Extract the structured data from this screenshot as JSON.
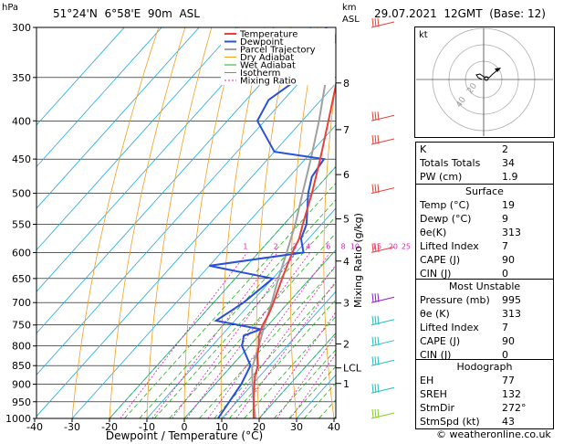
{
  "header": {
    "location": "51°24'N  6°58'E  90m  ASL",
    "datetime": "29.07.2021  12GMT  (Base: 12)",
    "hpa_label": "hPa",
    "km_label": "km",
    "asl_label": "ASL"
  },
  "chart_data": {
    "type": "skew-t",
    "xlabel": "Dewpoint / Temperature (°C)",
    "ylabel_right": "Mixing Ratio (g/kg)",
    "pressure_ticks": [
      "300",
      "350",
      "400",
      "450",
      "500",
      "550",
      "600",
      "650",
      "700",
      "750",
      "800",
      "850",
      "900",
      "950",
      "1000"
    ],
    "temp_ticks": [
      "-40",
      "-30",
      "-20",
      "-10",
      "0",
      "10",
      "20",
      "30",
      "40"
    ],
    "km_ticks": [
      {
        "label": "8",
        "p": 356
      },
      {
        "label": "7",
        "p": 411
      },
      {
        "label": "6",
        "p": 472
      },
      {
        "label": "5",
        "p": 541
      },
      {
        "label": "4",
        "p": 616
      },
      {
        "label": "3",
        "p": 701
      },
      {
        "label": "2",
        "p": 795
      },
      {
        "label": "LCL",
        "p": 856
      },
      {
        "label": "1",
        "p": 898
      }
    ],
    "mixing_ratio_labels": [
      "1",
      "2",
      "3",
      "4",
      "6",
      "8",
      "10",
      "15",
      "20",
      "25"
    ],
    "legend": [
      "Temperature",
      "Dewpoint",
      "Parcel Trajectory",
      "Dry Adiabat",
      "Wet Adiabat",
      "Isotherm",
      "Mixing Ratio"
    ],
    "colors": {
      "temperature": "#e8413a",
      "dewpoint": "#2850d8",
      "parcel": "#a0a0a0",
      "dry_adiabat": "#f0a020",
      "wet_adiabat": "#20b020",
      "isotherm": "#20a8e0",
      "mixing_ratio": "#e020c0"
    },
    "temperature": [
      {
        "p": 1000,
        "t": 18.5
      },
      {
        "p": 975,
        "t": 16.5
      },
      {
        "p": 950,
        "t": 14.5
      },
      {
        "p": 925,
        "t": 12.5
      },
      {
        "p": 900,
        "t": 10.5
      },
      {
        "p": 875,
        "t": 8.5
      },
      {
        "p": 850,
        "t": 7
      },
      {
        "p": 825,
        "t": 4.5
      },
      {
        "p": 800,
        "t": 2.5
      },
      {
        "p": 775,
        "t": 0
      },
      {
        "p": 750,
        "t": -1.5
      },
      {
        "p": 725,
        "t": -2.5
      },
      {
        "p": 700,
        "t": -4
      },
      {
        "p": 650,
        "t": -7.5
      },
      {
        "p": 600,
        "t": -11
      },
      {
        "p": 575,
        "t": -12.5
      },
      {
        "p": 550,
        "t": -15
      },
      {
        "p": 500,
        "t": -20
      },
      {
        "p": 450,
        "t": -26
      },
      {
        "p": 400,
        "t": -33
      },
      {
        "p": 350,
        "t": -41
      },
      {
        "p": 300,
        "t": -50
      }
    ],
    "dewpoint": [
      {
        "p": 1000,
        "t": 9
      },
      {
        "p": 950,
        "t": 8
      },
      {
        "p": 900,
        "t": 7
      },
      {
        "p": 850,
        "t": 5
      },
      {
        "p": 800,
        "t": -2
      },
      {
        "p": 775,
        "t": -4
      },
      {
        "p": 760,
        "t": -1
      },
      {
        "p": 740,
        "t": -15
      },
      {
        "p": 700,
        "t": -12
      },
      {
        "p": 650,
        "t": -10
      },
      {
        "p": 625,
        "t": -30
      },
      {
        "p": 600,
        "t": -8
      },
      {
        "p": 575,
        "t": -12
      },
      {
        "p": 550,
        "t": -14
      },
      {
        "p": 500,
        "t": -21
      },
      {
        "p": 475,
        "t": -24
      },
      {
        "p": 450,
        "t": -25
      },
      {
        "p": 440,
        "t": -40
      },
      {
        "p": 400,
        "t": -52
      },
      {
        "p": 375,
        "t": -54
      },
      {
        "p": 350,
        "t": -51
      },
      {
        "p": 340,
        "t": -60
      },
      {
        "p": 325,
        "t": -50
      },
      {
        "p": 310,
        "t": -54
      },
      {
        "p": 300,
        "t": -56
      }
    ],
    "parcel": [
      {
        "p": 1000,
        "t": 19
      },
      {
        "p": 950,
        "t": 14.5
      },
      {
        "p": 900,
        "t": 10
      },
      {
        "p": 856,
        "t": 6
      },
      {
        "p": 800,
        "t": 2.5
      },
      {
        "p": 750,
        "t": -1
      },
      {
        "p": 700,
        "t": -4.5
      },
      {
        "p": 650,
        "t": -8.5
      },
      {
        "p": 600,
        "t": -12.5
      },
      {
        "p": 550,
        "t": -17
      },
      {
        "p": 500,
        "t": -22.5
      },
      {
        "p": 450,
        "t": -28.5
      },
      {
        "p": 400,
        "t": -35.5
      },
      {
        "p": 350,
        "t": -44
      },
      {
        "p": 300,
        "t": -53
      }
    ],
    "wind_barbs": [
      {
        "p": 300,
        "color": "#e8413a"
      },
      {
        "p": 400,
        "color": "#e8413a"
      },
      {
        "p": 430,
        "color": "#e8413a"
      },
      {
        "p": 500,
        "color": "#e8413a"
      },
      {
        "p": 600,
        "color": "#e8413a"
      },
      {
        "p": 700,
        "color": "#8a20d0"
      },
      {
        "p": 750,
        "color": "#20c0c0"
      },
      {
        "p": 800,
        "color": "#20c0c0"
      },
      {
        "p": 850,
        "color": "#20c0c0"
      },
      {
        "p": 925,
        "color": "#20c0c0"
      },
      {
        "p": 1000,
        "color": "#80d020"
      }
    ]
  },
  "hodograph": {
    "unit_label": "kt",
    "ring_labels": [
      "20",
      "40"
    ]
  },
  "indices": {
    "k_label": "K",
    "k_value": "2",
    "tt_label": "Totals Totals",
    "tt_value": "34",
    "pw_label": "PW (cm)",
    "pw_value": "1.9"
  },
  "surface": {
    "title": "Surface",
    "temp_label": "Temp (°C)",
    "temp_value": "19",
    "dewp_label": "Dewp (°C)",
    "dewp_value": "9",
    "theta_label": "θe(K)",
    "theta_value": "313",
    "li_label": "Lifted Index",
    "li_value": "7",
    "cape_label": "CAPE (J)",
    "cape_value": "90",
    "cin_label": "CIN (J)",
    "cin_value": "0"
  },
  "most_unstable": {
    "title": "Most Unstable",
    "pressure_label": "Pressure (mb)",
    "pressure_value": "995",
    "theta_label": "θe (K)",
    "theta_value": "313",
    "li_label": "Lifted Index",
    "li_value": "7",
    "cape_label": "CAPE (J)",
    "cape_value": "90",
    "cin_label": "CIN (J)",
    "cin_value": "0"
  },
  "hodograph_table": {
    "title": "Hodograph",
    "eh_label": "EH",
    "eh_value": "77",
    "srh_label": "SREH",
    "srh_value": "132",
    "dir_label": "StmDir",
    "dir_value": "272°",
    "spd_label": "StmSpd (kt)",
    "spd_value": "43"
  },
  "footer": {
    "credit": "© weatheronline.co.uk"
  }
}
